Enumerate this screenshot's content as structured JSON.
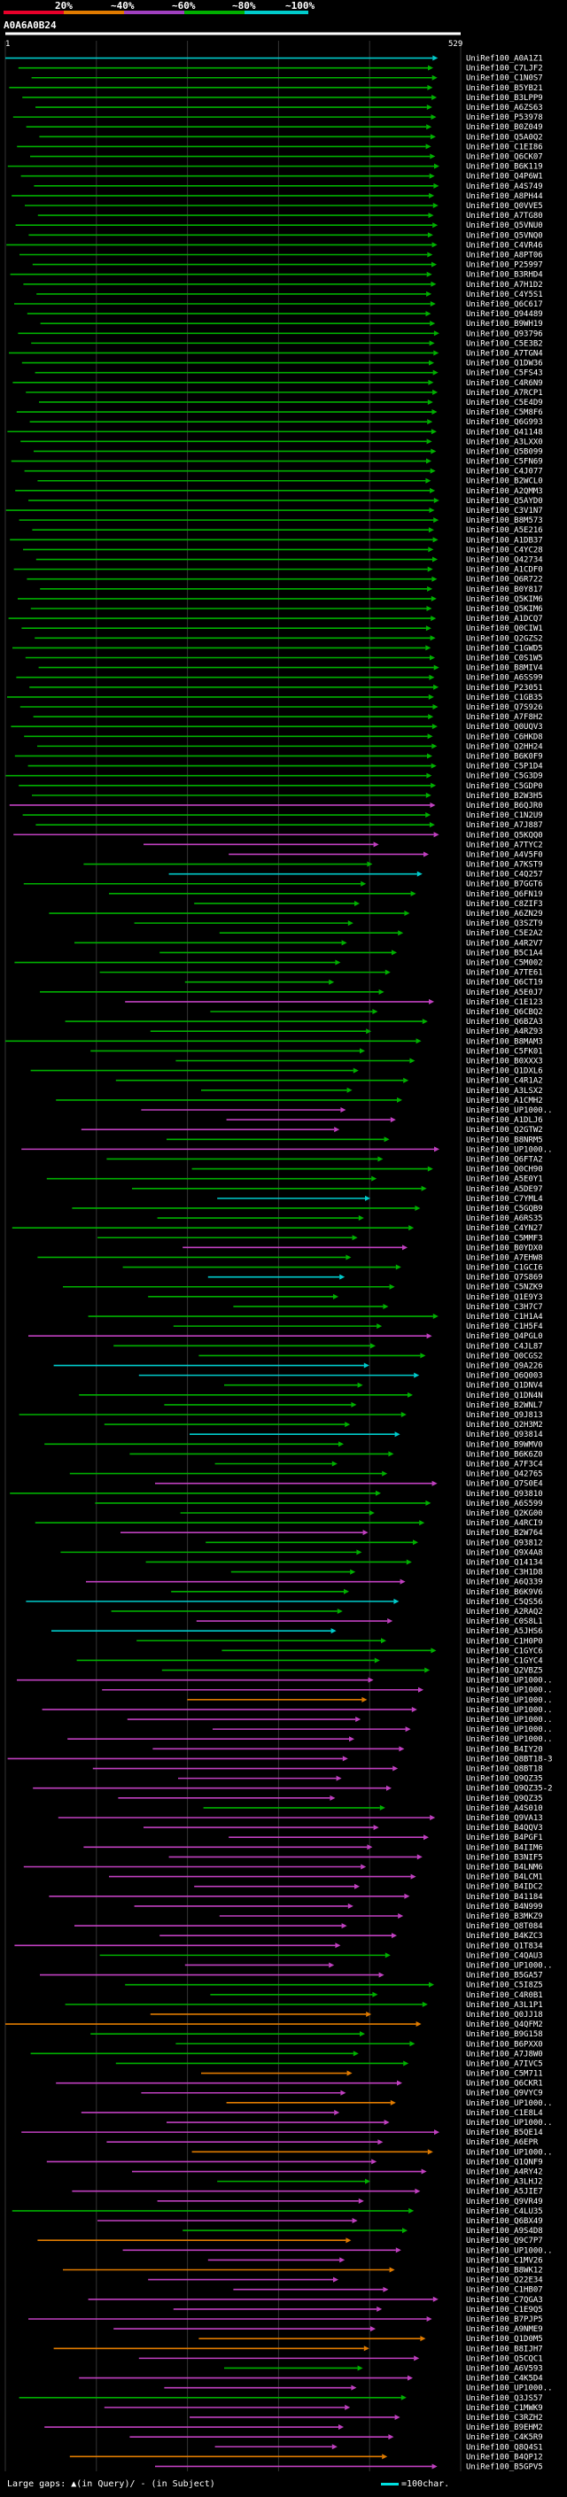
{
  "query_id": "A0A6A0B24",
  "legend_bins": [
    {
      "label": "20%",
      "color": "#e8002a"
    },
    {
      "label": "~40%",
      "color": "#e07b00"
    },
    {
      "label": "~60%",
      "color": "#a040c0"
    },
    {
      "label": "~80%",
      "color": "#00b000"
    },
    {
      "label": "~100%",
      "color": "#00cccc"
    }
  ],
  "query_range": {
    "start": "1",
    "end": "529"
  },
  "footer_left": "Large gaps: ▲(in Query)/ - (in Subject)",
  "footer_right": "=100char.",
  "palette": {
    "cyan": "#00cccc",
    "green": "#00b000",
    "magenta": "#c040c0",
    "orange": "#e07b00",
    "red": "#e8002a"
  },
  "hits": [
    {
      "label": "UniRef100_A0A1Z1",
      "c": "cyan"
    },
    {
      "label": "UniRef100_C7LJF2",
      "c": "green"
    },
    {
      "label": "UniRef100_C1N0S7",
      "c": "green"
    },
    {
      "label": "UniRef100_B5YB21",
      "c": "green"
    },
    {
      "label": "UniRef100_B3LPP9",
      "c": "green"
    },
    {
      "label": "UniRef100_A6ZS63",
      "c": "green"
    },
    {
      "label": "UniRef100_P53978",
      "c": "green"
    },
    {
      "label": "UniRef100_B0Z049",
      "c": "green"
    },
    {
      "label": "UniRef100_Q5A0Q2",
      "c": "green"
    },
    {
      "label": "UniRef100_C1EI86",
      "c": "green"
    },
    {
      "label": "UniRef100_Q6CK07",
      "c": "green"
    },
    {
      "label": "UniRef100_B6K119",
      "c": "green"
    },
    {
      "label": "UniRef100_Q4P6W1",
      "c": "green"
    },
    {
      "label": "UniRef100_A4S749",
      "c": "green"
    },
    {
      "label": "UniRef100_A8PH44",
      "c": "green"
    },
    {
      "label": "UniRef100_Q0VVE5",
      "c": "green"
    },
    {
      "label": "UniRef100_A7TG80",
      "c": "green"
    },
    {
      "label": "UniRef100_Q5VNU0",
      "c": "green"
    },
    {
      "label": "UniRef100_Q5VNQ0",
      "c": "green"
    },
    {
      "label": "UniRef100_C4VR46",
      "c": "green"
    },
    {
      "label": "UniRef100_A8PT06",
      "c": "green"
    },
    {
      "label": "UniRef100_P25997",
      "c": "green"
    },
    {
      "label": "UniRef100_B3RHD4",
      "c": "green"
    },
    {
      "label": "UniRef100_A7H1D2",
      "c": "green"
    },
    {
      "label": "UniRef100_C4Y5S1",
      "c": "green"
    },
    {
      "label": "UniRef100_Q6C617",
      "c": "green"
    },
    {
      "label": "UniRef100_Q94489",
      "c": "green"
    },
    {
      "label": "UniRef100_B9WH19",
      "c": "green"
    },
    {
      "label": "UniRef100_Q93796",
      "c": "green"
    },
    {
      "label": "UniRef100_C5E3B2",
      "c": "green"
    },
    {
      "label": "UniRef100_A7TGN4",
      "c": "green"
    },
    {
      "label": "UniRef100_Q1DW36",
      "c": "green"
    },
    {
      "label": "UniRef100_C5FS43",
      "c": "green"
    },
    {
      "label": "UniRef100_C4R6N9",
      "c": "green"
    },
    {
      "label": "UniRef100_A7RCP1",
      "c": "green"
    },
    {
      "label": "UniRef100_C5E4D9",
      "c": "green"
    },
    {
      "label": "UniRef100_C5M8F6",
      "c": "green"
    },
    {
      "label": "UniRef100_Q6G993",
      "c": "green"
    },
    {
      "label": "UniRef100_Q41148",
      "c": "green"
    },
    {
      "label": "UniRef100_A3LXX0",
      "c": "green"
    },
    {
      "label": "UniRef100_Q5B099",
      "c": "green"
    },
    {
      "label": "UniRef100_C5FN69",
      "c": "green"
    },
    {
      "label": "UniRef100_C4J077",
      "c": "green"
    },
    {
      "label": "UniRef100_B2WCL0",
      "c": "green"
    },
    {
      "label": "UniRef100_A2QMM3",
      "c": "green"
    },
    {
      "label": "UniRef100_Q5AYD0",
      "c": "green"
    },
    {
      "label": "UniRef100_C3V1N7",
      "c": "green"
    },
    {
      "label": "UniRef100_B8M573",
      "c": "green"
    },
    {
      "label": "UniRef100_A5E216",
      "c": "green"
    },
    {
      "label": "UniRef100_A1DB37",
      "c": "green"
    },
    {
      "label": "UniRef100_C4YC28",
      "c": "green"
    },
    {
      "label": "UniRef100_Q42734",
      "c": "green"
    },
    {
      "label": "UniRef100_A1CDF0",
      "c": "green"
    },
    {
      "label": "UniRef100_Q6R722",
      "c": "green"
    },
    {
      "label": "UniRef100_B0Y817",
      "c": "green"
    },
    {
      "label": "UniRef100_Q5KIM6",
      "c": "green"
    },
    {
      "label": "UniRef100_Q5KIM6",
      "c": "green"
    },
    {
      "label": "UniRef100_A1DCQ7",
      "c": "green"
    },
    {
      "label": "UniRef100_Q0CIW1",
      "c": "green"
    },
    {
      "label": "UniRef100_Q2GZS2",
      "c": "green"
    },
    {
      "label": "UniRef100_C1GWD5",
      "c": "green"
    },
    {
      "label": "UniRef100_C0S1W5",
      "c": "green"
    },
    {
      "label": "UniRef100_B8MIV4",
      "c": "green"
    },
    {
      "label": "UniRef100_A6SS99",
      "c": "green"
    },
    {
      "label": "UniRef100_P23051",
      "c": "green"
    },
    {
      "label": "UniRef100_C1GB35",
      "c": "green"
    },
    {
      "label": "UniRef100_Q7S926",
      "c": "green"
    },
    {
      "label": "UniRef100_A7F8H2",
      "c": "green"
    },
    {
      "label": "UniRef100_Q0UQV3",
      "c": "green"
    },
    {
      "label": "UniRef100_C6HKD8",
      "c": "green"
    },
    {
      "label": "UniRef100_Q2HH24",
      "c": "green"
    },
    {
      "label": "UniRef100_B6K0F9",
      "c": "green"
    },
    {
      "label": "UniRef100_C5P1D4",
      "c": "green"
    },
    {
      "label": "UniRef100_C5G3D9",
      "c": "green"
    },
    {
      "label": "UniRef100_C5GDP0",
      "c": "green"
    },
    {
      "label": "UniRef100_B2W3H5",
      "c": "green"
    },
    {
      "label": "UniRef100_B6QJR0",
      "c": "magenta"
    },
    {
      "label": "UniRef100_C1N2U9",
      "c": "green"
    },
    {
      "label": "UniRef100_A7J887",
      "c": "green"
    },
    {
      "label": "UniRef100_Q5KQQ0",
      "c": "magenta"
    },
    {
      "label": "UniRef100_A7TYC2",
      "c": "magenta"
    },
    {
      "label": "UniRef100_A4V5F0",
      "c": "magenta"
    },
    {
      "label": "UniRef100_A7KST9",
      "c": "green"
    },
    {
      "label": "UniRef100_C4Q257",
      "c": "cyan"
    },
    {
      "label": "UniRef100_B7GGT6",
      "c": "green"
    },
    {
      "label": "UniRef100_Q6FN19",
      "c": "green"
    },
    {
      "label": "UniRef100_C8ZIF3",
      "c": "green"
    },
    {
      "label": "UniRef100_A6ZN29",
      "c": "green"
    },
    {
      "label": "UniRef100_Q3SZT9",
      "c": "green"
    },
    {
      "label": "UniRef100_C5E2A2",
      "c": "green"
    },
    {
      "label": "UniRef100_A4R2V7",
      "c": "green"
    },
    {
      "label": "UniRef100_B5C1A4",
      "c": "green"
    },
    {
      "label": "UniRef100_C5M002",
      "c": "green"
    },
    {
      "label": "UniRef100_A7TE61",
      "c": "green"
    },
    {
      "label": "UniRef100_Q6CT19",
      "c": "green"
    },
    {
      "label": "UniRef100_A5E0J7",
      "c": "green"
    },
    {
      "label": "UniRef100_C1E123",
      "c": "magenta"
    },
    {
      "label": "UniRef100_Q6CBQ2",
      "c": "green"
    },
    {
      "label": "UniRef100_Q6BZA3",
      "c": "green"
    },
    {
      "label": "UniRef100_A4RZ93",
      "c": "green"
    },
    {
      "label": "UniRef100_B8MAM3",
      "c": "green"
    },
    {
      "label": "UniRef100_C5FK01",
      "c": "green"
    },
    {
      "label": "UniRef100_B0XXX3",
      "c": "green"
    },
    {
      "label": "UniRef100_Q1DXL6",
      "c": "green"
    },
    {
      "label": "UniRef100_C4R1A2",
      "c": "green"
    },
    {
      "label": "UniRef100_A3LSX2",
      "c": "green"
    },
    {
      "label": "UniRef100_A1CMH2",
      "c": "green"
    },
    {
      "label": "UniRef100_UP1000..",
      "c": "magenta"
    },
    {
      "label": "UniRef100_A1DLJ6",
      "c": "magenta"
    },
    {
      "label": "UniRef100_Q2GTW2",
      "c": "magenta"
    },
    {
      "label": "UniRef100_B8NRM5",
      "c": "green"
    },
    {
      "label": "UniRef100_UP1000..",
      "c": "magenta"
    },
    {
      "label": "UniRef100_Q6FTA2",
      "c": "green"
    },
    {
      "label": "UniRef100_Q0CH90",
      "c": "green"
    },
    {
      "label": "UniRef100_A5E0Y1",
      "c": "green"
    },
    {
      "label": "UniRef100_A5DE97",
      "c": "green"
    },
    {
      "label": "UniRef100_C7YML4",
      "c": "cyan"
    },
    {
      "label": "UniRef100_C5GQB9",
      "c": "green"
    },
    {
      "label": "UniRef100_A6RS35",
      "c": "green"
    },
    {
      "label": "UniRef100_C4YN27",
      "c": "green"
    },
    {
      "label": "UniRef100_C5MMF3",
      "c": "green"
    },
    {
      "label": "UniRef100_B0YDX0",
      "c": "magenta"
    },
    {
      "label": "UniRef100_A7EHW8",
      "c": "green"
    },
    {
      "label": "UniRef100_C1GCI6",
      "c": "green"
    },
    {
      "label": "UniRef100_Q7S869",
      "c": "cyan"
    },
    {
      "label": "UniRef100_C5NZK9",
      "c": "green"
    },
    {
      "label": "UniRef100_Q1E9Y3",
      "c": "green"
    },
    {
      "label": "UniRef100_C3H7C7",
      "c": "green"
    },
    {
      "label": "UniRef100_C1H1A4",
      "c": "green"
    },
    {
      "label": "UniRef100_C1H5F4",
      "c": "green"
    },
    {
      "label": "UniRef100_Q4PGL0",
      "c": "magenta"
    },
    {
      "label": "UniRef100_C4JL87",
      "c": "green"
    },
    {
      "label": "UniRef100_Q0CGS2",
      "c": "green"
    },
    {
      "label": "UniRef100_Q9A226",
      "c": "cyan"
    },
    {
      "label": "UniRef100_Q6Q003",
      "c": "cyan"
    },
    {
      "label": "UniRef100_Q1DNV4",
      "c": "green"
    },
    {
      "label": "UniRef100_Q1DN4N",
      "c": "green"
    },
    {
      "label": "UniRef100_B2WNL7",
      "c": "green"
    },
    {
      "label": "UniRef100_Q9J813",
      "c": "green"
    },
    {
      "label": "UniRef100_Q2H3M2",
      "c": "green"
    },
    {
      "label": "UniRef100_Q93814",
      "c": "cyan"
    },
    {
      "label": "UniRef100_B9WMV0",
      "c": "green"
    },
    {
      "label": "UniRef100_B6K6Z0",
      "c": "green"
    },
    {
      "label": "UniRef100_A7F3C4",
      "c": "green"
    },
    {
      "label": "UniRef100_Q42765",
      "c": "green"
    },
    {
      "label": "UniRef100_Q7S0E4",
      "c": "magenta"
    },
    {
      "label": "UniRef100_Q93810",
      "c": "green"
    },
    {
      "label": "UniRef100_A6S599",
      "c": "green"
    },
    {
      "label": "UniRef100_Q2KG00",
      "c": "green"
    },
    {
      "label": "UniRef100_A4RCI9",
      "c": "green"
    },
    {
      "label": "UniRef100_B2W764",
      "c": "magenta"
    },
    {
      "label": "UniRef100_Q93812",
      "c": "green"
    },
    {
      "label": "UniRef100_Q9X4A8",
      "c": "green"
    },
    {
      "label": "UniRef100_Q14134",
      "c": "green"
    },
    {
      "label": "UniRef100_C3H1D8",
      "c": "green"
    },
    {
      "label": "UniRef100_A6Q339",
      "c": "magenta"
    },
    {
      "label": "UniRef100_B6K9V6",
      "c": "green"
    },
    {
      "label": "UniRef100_C5QS56",
      "c": "cyan"
    },
    {
      "label": "UniRef100_A2RAQ2",
      "c": "green"
    },
    {
      "label": "UniRef100_C0S8L1",
      "c": "magenta"
    },
    {
      "label": "UniRef100_A5JHS6",
      "c": "cyan"
    },
    {
      "label": "UniRef100_C1H0P0",
      "c": "green"
    },
    {
      "label": "UniRef100_C1GYC6",
      "c": "green"
    },
    {
      "label": "UniRef100_C1GYC4",
      "c": "green"
    },
    {
      "label": "UniRef100_Q2VBZ5",
      "c": "green"
    },
    {
      "label": "UniRef100_UP1000..",
      "c": "magenta"
    },
    {
      "label": "UniRef100_UP1000..",
      "c": "magenta"
    },
    {
      "label": "UniRef100_UP1000..",
      "c": "orange"
    },
    {
      "label": "UniRef100_UP1000..",
      "c": "magenta"
    },
    {
      "label": "UniRef100_UP1000..",
      "c": "magenta"
    },
    {
      "label": "UniRef100_UP1000..",
      "c": "magenta"
    },
    {
      "label": "UniRef100_UP1000..",
      "c": "magenta"
    },
    {
      "label": "UniRef100_B4IY20",
      "c": "magenta"
    },
    {
      "label": "UniRef100_Q8BT18-3",
      "c": "magenta"
    },
    {
      "label": "UniRef100_Q8BT18",
      "c": "magenta"
    },
    {
      "label": "UniRef100_Q9QZ35",
      "c": "magenta"
    },
    {
      "label": "UniRef100_Q9QZ35-2",
      "c": "magenta"
    },
    {
      "label": "UniRef100_Q9QZ35",
      "c": "magenta"
    },
    {
      "label": "UniRef100_A4S010",
      "c": "green"
    },
    {
      "label": "UniRef100_Q9VA13",
      "c": "magenta"
    },
    {
      "label": "UniRef100_B4QQV3",
      "c": "magenta"
    },
    {
      "label": "UniRef100_B4PGF1",
      "c": "magenta"
    },
    {
      "label": "UniRef100_B4IIM6",
      "c": "magenta"
    },
    {
      "label": "UniRef100_B3NIF5",
      "c": "magenta"
    },
    {
      "label": "UniRef100_B4LNM6",
      "c": "magenta"
    },
    {
      "label": "UniRef100_B4LCM1",
      "c": "magenta"
    },
    {
      "label": "UniRef100_B4IDC2",
      "c": "magenta"
    },
    {
      "label": "UniRef100_B41184",
      "c": "magenta"
    },
    {
      "label": "UniRef100_B4N999",
      "c": "magenta"
    },
    {
      "label": "UniRef100_B3MKZ9",
      "c": "magenta"
    },
    {
      "label": "UniRef100_Q8T084",
      "c": "magenta"
    },
    {
      "label": "UniRef100_B4KZC3",
      "c": "magenta"
    },
    {
      "label": "UniRef100_Q1T834",
      "c": "magenta"
    },
    {
      "label": "UniRef100_C4QAU3",
      "c": "green"
    },
    {
      "label": "UniRef100_UP1000..",
      "c": "magenta"
    },
    {
      "label": "UniRef100_B5GA57",
      "c": "magenta"
    },
    {
      "label": "UniRef100_C5I8Z5",
      "c": "green"
    },
    {
      "label": "UniRef100_C4R0B1",
      "c": "green"
    },
    {
      "label": "UniRef100_A3L1P1",
      "c": "green"
    },
    {
      "label": "UniRef100_Q0JJ18",
      "c": "orange"
    },
    {
      "label": "UniRef100_Q4QFM2",
      "c": "orange"
    },
    {
      "label": "UniRef100_B9G158",
      "c": "green"
    },
    {
      "label": "UniRef100_B6PXX0",
      "c": "green"
    },
    {
      "label": "UniRef100_A7J8W0",
      "c": "green"
    },
    {
      "label": "UniRef100_A7IVC5",
      "c": "green"
    },
    {
      "label": "UniRef100_C5M711",
      "c": "orange"
    },
    {
      "label": "UniRef100_Q6CKR1",
      "c": "magenta"
    },
    {
      "label": "UniRef100_Q9VYC9",
      "c": "magenta"
    },
    {
      "label": "UniRef100_UP1000..",
      "c": "orange"
    },
    {
      "label": "UniRef100_C1E8L4",
      "c": "magenta"
    },
    {
      "label": "UniRef100_UP1000..",
      "c": "magenta"
    },
    {
      "label": "UniRef100_B5QE14",
      "c": "magenta"
    },
    {
      "label": "UniRef100_A6EPR",
      "c": "magenta"
    },
    {
      "label": "UniRef100_UP1000..",
      "c": "orange"
    },
    {
      "label": "UniRef100_Q1QNF9",
      "c": "magenta"
    },
    {
      "label": "UniRef100_A4RY42",
      "c": "magenta"
    },
    {
      "label": "UniRef100_A3LHJ2",
      "c": "green"
    },
    {
      "label": "UniRef100_A5JIE7",
      "c": "magenta"
    },
    {
      "label": "UniRef100_Q9VR49",
      "c": "magenta"
    },
    {
      "label": "UniRef100_C4LU35",
      "c": "green"
    },
    {
      "label": "UniRef100_Q6BX49",
      "c": "magenta"
    },
    {
      "label": "UniRef100_A9S4D8",
      "c": "green"
    },
    {
      "label": "UniRef100_Q9C7P7",
      "c": "orange"
    },
    {
      "label": "UniRef100_UP1000..",
      "c": "magenta"
    },
    {
      "label": "UniRef100_C1MV26",
      "c": "magenta"
    },
    {
      "label": "UniRef100_B8WK12",
      "c": "orange"
    },
    {
      "label": "UniRef100_Q22E34",
      "c": "magenta"
    },
    {
      "label": "UniRef100_C1HB07",
      "c": "magenta"
    },
    {
      "label": "UniRef100_C7QGA3",
      "c": "magenta"
    },
    {
      "label": "UniRef100_C1E9Q5",
      "c": "magenta"
    },
    {
      "label": "UniRef100_B7PJP5",
      "c": "magenta"
    },
    {
      "label": "UniRef100_A9NME9",
      "c": "magenta"
    },
    {
      "label": "UniRef100_Q1D0M5",
      "c": "orange"
    },
    {
      "label": "UniRef100_B8IJH7",
      "c": "orange"
    },
    {
      "label": "UniRef100_Q5CQC1",
      "c": "magenta"
    },
    {
      "label": "UniRef100_A6V593",
      "c": "green"
    },
    {
      "label": "UniRef100_C4K5D4",
      "c": "magenta"
    },
    {
      "label": "UniRef100_UP1000..",
      "c": "magenta"
    },
    {
      "label": "UniRef100_Q3JS57",
      "c": "green"
    },
    {
      "label": "UniRef100_C1MWK9",
      "c": "magenta"
    },
    {
      "label": "UniRef100_C3RZH2",
      "c": "magenta"
    },
    {
      "label": "UniRef100_B9EHM2",
      "c": "magenta"
    },
    {
      "label": "UniRef100_C4K5R9",
      "c": "magenta"
    },
    {
      "label": "UniRef100_Q8Q4S1",
      "c": "magenta"
    },
    {
      "label": "UniRef100_B4QP12",
      "c": "orange"
    },
    {
      "label": "UniRef100_B5GPV5",
      "c": "magenta"
    }
  ]
}
